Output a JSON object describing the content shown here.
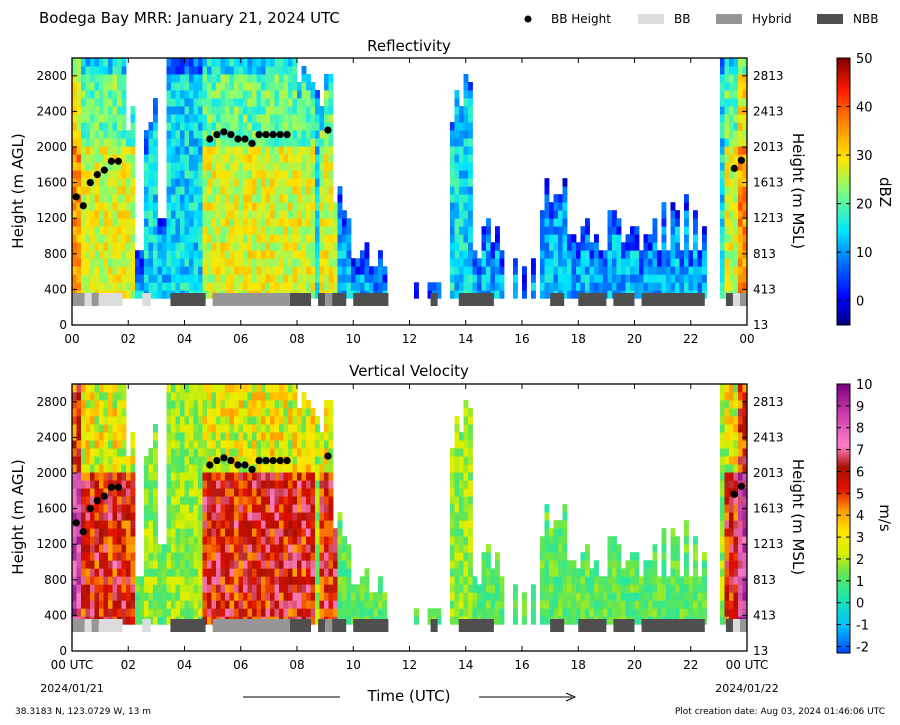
{
  "header": {
    "title": "Bodega Bay MRR:  January 21, 2024 UTC"
  },
  "legend": {
    "items": [
      {
        "label": "BB Height",
        "kind": "dot",
        "color": "#000000"
      },
      {
        "label": "BB",
        "kind": "box",
        "color": "#dcdcdc"
      },
      {
        "label": "Hybrid",
        "kind": "box",
        "color": "#969696"
      },
      {
        "label": "NBB",
        "kind": "box",
        "color": "#4f4f4f"
      }
    ]
  },
  "footer": {
    "coords": "38.3183 N, 123.0729 W, 13 m",
    "created": "Plot creation date: Aug 03, 2024 01:46:06 UTC",
    "xlabel": "Time (UTC)",
    "start_date": "2024/01/21",
    "end_date": "2024/01/22"
  },
  "chart_data": [
    {
      "type": "heatmap",
      "title": "Reflectivity",
      "ylabel": "Height (m AGL)",
      "ylabel_right": "Height (m MSL)",
      "colorbar_label": "dBZ",
      "colorbar_ticks": [
        "50",
        "40",
        "30",
        "20",
        "10",
        "0"
      ],
      "colorbar_range": [
        -5,
        50
      ],
      "x_range_hours": [
        0,
        24
      ],
      "y_range_m": [
        0,
        3000
      ],
      "x_ticks": [
        "00",
        "02",
        "04",
        "06",
        "08",
        "10",
        "12",
        "14",
        "16",
        "18",
        "20",
        "22",
        "00"
      ],
      "y_ticks_left": [
        "0",
        "400",
        "800",
        "1200",
        "1600",
        "2000",
        "2400",
        "2800"
      ],
      "y_ticks_right": [
        "13",
        "413",
        "813",
        "1213",
        "1613",
        "2013",
        "2413",
        "2813"
      ]
    },
    {
      "type": "heatmap",
      "title": "Vertical Velocity",
      "ylabel": "Height (m AGL)",
      "ylabel_right": "Height (m MSL)",
      "colorbar_label": "m/s",
      "colorbar_ticks": [
        "10",
        "9",
        "8",
        "7",
        "6",
        "5",
        "4",
        "3",
        "2",
        "1",
        "0",
        "-1",
        "-2"
      ],
      "colorbar_range": [
        -2.3,
        10
      ],
      "x_range_hours": [
        0,
        24
      ],
      "y_range_m": [
        0,
        3000
      ],
      "x_ticks": [
        "00 UTC",
        "02",
        "04",
        "06",
        "08",
        "10",
        "12",
        "14",
        "16",
        "18",
        "20",
        "22",
        "00 UTC"
      ],
      "y_ticks_left": [
        "0",
        "400",
        "800",
        "1200",
        "1600",
        "2000",
        "2400",
        "2800"
      ],
      "y_ticks_right": [
        "13",
        "413",
        "813",
        "1213",
        "1613",
        "2013",
        "2413",
        "2813"
      ]
    }
  ],
  "bb_height_points": [
    {
      "t": 0.15,
      "h": 1440
    },
    {
      "t": 0.4,
      "h": 1340
    },
    {
      "t": 0.65,
      "h": 1600
    },
    {
      "t": 0.9,
      "h": 1690
    },
    {
      "t": 1.15,
      "h": 1740
    },
    {
      "t": 1.4,
      "h": 1840
    },
    {
      "t": 1.65,
      "h": 1840
    },
    {
      "t": 4.9,
      "h": 2090
    },
    {
      "t": 5.15,
      "h": 2140
    },
    {
      "t": 5.4,
      "h": 2170
    },
    {
      "t": 5.65,
      "h": 2140
    },
    {
      "t": 5.9,
      "h": 2090
    },
    {
      "t": 6.15,
      "h": 2090
    },
    {
      "t": 6.4,
      "h": 2040
    },
    {
      "t": 6.65,
      "h": 2140
    },
    {
      "t": 6.9,
      "h": 2140
    },
    {
      "t": 7.15,
      "h": 2140
    },
    {
      "t": 7.4,
      "h": 2140
    },
    {
      "t": 7.65,
      "h": 2140
    },
    {
      "t": 9.1,
      "h": 2190
    },
    {
      "t": 23.55,
      "h": 1760
    },
    {
      "t": 23.8,
      "h": 1850
    }
  ],
  "classification_segments": [
    {
      "start": 0.0,
      "end": 0.45,
      "class": "Hybrid"
    },
    {
      "start": 0.45,
      "end": 0.7,
      "class": "BB"
    },
    {
      "start": 0.7,
      "end": 0.95,
      "class": "Hybrid"
    },
    {
      "start": 0.95,
      "end": 1.8,
      "class": "BB"
    },
    {
      "start": 2.5,
      "end": 2.8,
      "class": "BB"
    },
    {
      "start": 3.5,
      "end": 4.75,
      "class": "NBB"
    },
    {
      "start": 5.0,
      "end": 7.75,
      "class": "Hybrid"
    },
    {
      "start": 7.75,
      "end": 8.5,
      "class": "NBB"
    },
    {
      "start": 8.75,
      "end": 9.0,
      "class": "NBB"
    },
    {
      "start": 9.0,
      "end": 9.25,
      "class": "Hybrid"
    },
    {
      "start": 9.25,
      "end": 9.75,
      "class": "NBB"
    },
    {
      "start": 10.0,
      "end": 11.25,
      "class": "NBB"
    },
    {
      "start": 12.75,
      "end": 13.0,
      "class": "NBB"
    },
    {
      "start": 13.75,
      "end": 15.0,
      "class": "NBB"
    },
    {
      "start": 17.0,
      "end": 17.5,
      "class": "NBB"
    },
    {
      "start": 18.0,
      "end": 19.0,
      "class": "NBB"
    },
    {
      "start": 19.25,
      "end": 20.0,
      "class": "NBB"
    },
    {
      "start": 20.25,
      "end": 22.5,
      "class": "NBB"
    },
    {
      "start": 23.25,
      "end": 23.5,
      "class": "NBB"
    },
    {
      "start": 23.5,
      "end": 23.75,
      "class": "BB"
    },
    {
      "start": 23.75,
      "end": 24.0,
      "class": "Hybrid"
    }
  ]
}
